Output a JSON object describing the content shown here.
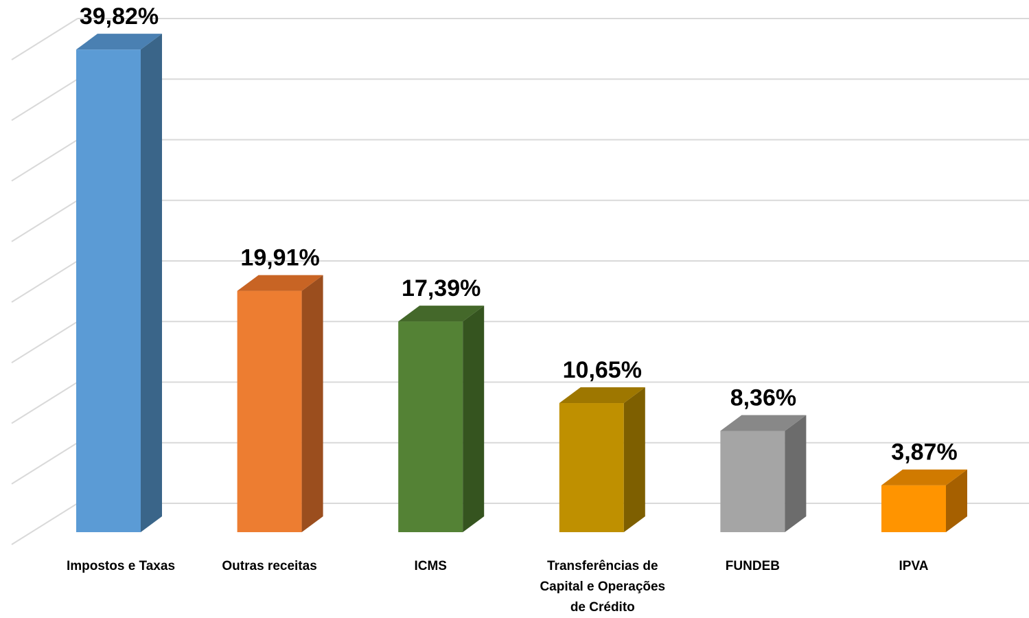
{
  "chart_data": {
    "type": "bar",
    "style": "3d-column",
    "title": "",
    "xlabel": "",
    "ylabel": "",
    "ylim": [
      0,
      45
    ],
    "grid": true,
    "legend": "none",
    "categories": [
      "Impostos e Taxas",
      "Outras receitas",
      "ICMS",
      "Transferências de Capital e Operações de Crédito",
      "FUNDEB",
      "IPVA"
    ],
    "category_lines": [
      [
        "Impostos e Taxas"
      ],
      [
        "Outras receitas"
      ],
      [
        "ICMS"
      ],
      [
        "Transferências de",
        "Capital e Operações",
        "de Crédito"
      ],
      [
        "FUNDEB"
      ],
      [
        "IPVA"
      ]
    ],
    "values": [
      39.82,
      19.91,
      17.39,
      10.65,
      8.36,
      3.87
    ],
    "data_labels": [
      "39,82%",
      "19,91%",
      "17,39%",
      "10,65%",
      "8,36%",
      "3,87%"
    ],
    "colors": {
      "front": [
        "#5B9BD5",
        "#ED7D31",
        "#548235",
        "#BF9000",
        "#A5A5A5",
        "#FF9400"
      ],
      "side": [
        "#3A6589",
        "#9B4E1E",
        "#35541F",
        "#7E5F00",
        "#6C6C6C",
        "#A66000"
      ],
      "top": [
        "#4A80B2",
        "#C86424",
        "#44682A",
        "#9E7700",
        "#888888",
        "#D07A00"
      ],
      "grid": "#D9D9D9"
    }
  }
}
